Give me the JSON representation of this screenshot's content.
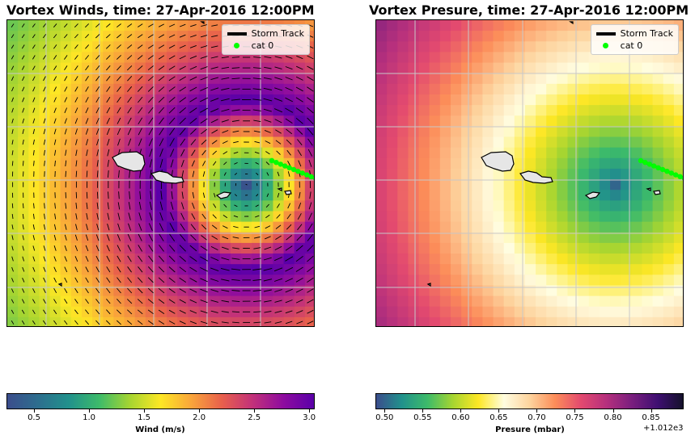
{
  "chart_data": [
    {
      "type": "heatmap",
      "title": "Vortex Winds, time: 27-Apr-2016 12:00PM",
      "colorbar_label": "Wind (m/s)",
      "colorbar_ticks": [
        "0.5",
        "1.0",
        "1.5",
        "2.0",
        "2.5",
        "3.0"
      ],
      "colorbar_range": [
        0.25,
        3.05
      ],
      "colormap": [
        "#3b4d8c",
        "#2d6e8e",
        "#21918c",
        "#3dbb6a",
        "#a6d531",
        "#fde725",
        "#f9a53b",
        "#e8604c",
        "#c2317a",
        "#8e0c9f",
        "#5a00a8"
      ],
      "legend": [
        "Storm Track",
        "cat 0"
      ],
      "overlay": "wind vectors (quiver arrows)",
      "grid": true
    },
    {
      "type": "heatmap",
      "title": "Vortex Presure, time: 27-Apr-2016 12:00PM",
      "colorbar_label": "Presure (mbar)",
      "colorbar_ticks": [
        "0.50",
        "0.55",
        "0.60",
        "0.65",
        "0.70",
        "0.75",
        "0.80",
        "0.85"
      ],
      "colorbar_range": [
        0.488,
        0.893
      ],
      "colorbar_offset": "+1.012e3",
      "colormap": [
        "#3b4d8c",
        "#21918c",
        "#3dbb6a",
        "#a6d531",
        "#fde725",
        "#fffde0",
        "#fdd49e",
        "#fc8d59",
        "#e34a6f",
        "#b6307d",
        "#7a1f7e",
        "#3f0f72",
        "#14112b"
      ],
      "legend": [
        "Storm Track",
        "cat 0"
      ],
      "grid": true
    }
  ],
  "legend_colors": {
    "storm_track": "#000000",
    "cat0": "#00ff00"
  }
}
